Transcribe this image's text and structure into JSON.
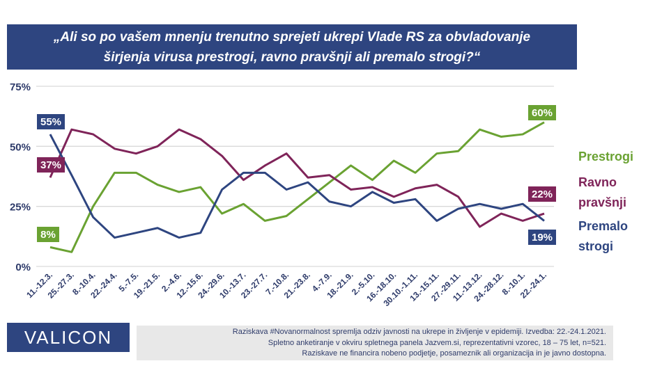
{
  "title_lines": [
    "„Ali so po vašem mnenju trenutno sprejeti ukrepi Vlade RS za obvladovanje",
    "širjenja virusa prestrogi, ravno pravšnji ali premalo strogi?“"
  ],
  "chart_data": {
    "type": "line",
    "title": "„Ali so po vašem mnenju trenutno sprejeti ukrepi Vlade RS za obvladovanje širjenja virusa prestrogi, ravno pravšnji ali premalo strogi?“",
    "categories": [
      "11.-12.3.",
      "25.-27.3.",
      "8.-10.4.",
      "22.-24.4.",
      "5.-7.5.",
      "19.-21.5.",
      "2.-4.6.",
      "12.-15.6.",
      "24.-29.6.",
      "10.-13.7.",
      "23.-27.7.",
      "7.-10.8.",
      "21.-23.8.",
      "4.-7.9.",
      "18.-21.9.",
      "2.-5.10.",
      "16.-18.10.",
      "30.10.-1.11.",
      "13.-15.11.",
      "27.-29.11.",
      "11.-13.12.",
      "24.-28.12.",
      "8.-10.1.",
      "22.-24.1."
    ],
    "yticks": [
      "0%",
      "25%",
      "50%",
      "75%"
    ],
    "ylim": [
      0,
      75
    ],
    "grid": true,
    "legend_position": "right",
    "series": [
      {
        "name": "Prestrogi",
        "color": "#6aa232",
        "values": [
          8,
          6,
          25,
          39,
          39,
          34,
          31,
          33,
          22,
          26,
          19,
          21,
          28,
          35,
          42,
          36,
          44,
          39,
          47,
          48,
          57,
          54,
          55,
          60
        ],
        "labels": [
          {
            "index": 0,
            "text": "8%"
          },
          {
            "index": 23,
            "text": "60%"
          }
        ]
      },
      {
        "name": "Ravno pravšnji",
        "color": "#7f2459",
        "values": [
          37,
          57,
          55,
          49,
          47,
          50,
          57,
          53,
          46,
          36,
          42,
          47,
          37,
          38,
          32,
          33,
          29,
          32.5,
          34,
          29,
          16.5,
          22,
          19,
          22
        ],
        "labels": [
          {
            "index": 0,
            "text": "37%"
          },
          {
            "index": 23,
            "text": "22%"
          }
        ]
      },
      {
        "name": "Premalo strogi",
        "color": "#2e4580",
        "values": [
          55,
          38,
          20.5,
          12,
          14,
          16,
          12,
          14,
          32,
          39,
          39,
          32,
          35,
          27,
          25,
          31,
          26.5,
          28,
          19,
          24,
          26,
          24,
          26,
          19
        ],
        "labels": [
          {
            "index": 0,
            "text": "55%"
          },
          {
            "index": 23,
            "text": "19%"
          }
        ]
      }
    ]
  },
  "legend": {
    "prestrogi": [
      "Prestrogi"
    ],
    "ravno": [
      "Ravno",
      "pravšnji"
    ],
    "premalo": [
      "Premalo",
      "strogi"
    ]
  },
  "logo": "VALICON",
  "footnote": [
    "Raziskava #Novanormalnost spremlja odziv javnosti na ukrepe in življenje v epidemiji. Izvedba: 22.-24.1.2021.",
    "Spletno anketiranje v okviru spletnega panela Jazvem.si, reprezentativni vzorec, 18 – 75 let, n=521.",
    "Raziskave ne financira nobeno podjetje, posameznik ali organizacija in je javno dostopna."
  ]
}
